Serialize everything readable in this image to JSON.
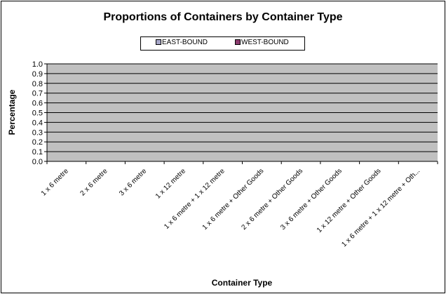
{
  "chart_data": {
    "type": "bar",
    "title": "Proportions of Containers by Container Type",
    "xlabel": "Container Type",
    "ylabel": "Percentage",
    "ylim": [
      0,
      1
    ],
    "yticks": [
      "0.0",
      "0.1",
      "0.2",
      "0.3",
      "0.4",
      "0.5",
      "0.6",
      "0.7",
      "0.8",
      "0.9",
      "1.0"
    ],
    "categories": [
      "1 x 6 metre",
      "2 x 6 metre",
      "3 x 6 metre",
      "1 x 12 metre",
      "1 x 6 metre + 1 x 12 metre",
      "1 x 6 metre + Other Goods",
      "2 x 6 metre + Other Goods",
      "3 x 6 metre + Other Goods",
      "1 x 12 metre + Other Goods",
      "1 x 6 metre + 1 x 12 metre + Oth..."
    ],
    "series": [
      {
        "name": "EAST-BOUND",
        "color": "#a6a6c8",
        "values": [
          0,
          0,
          0,
          0,
          0,
          0,
          0,
          0,
          0,
          0
        ]
      },
      {
        "name": "WEST-BOUND",
        "color": "#8c3c6e",
        "values": [
          0,
          0,
          0,
          0,
          0,
          0,
          0,
          0,
          0,
          0
        ]
      }
    ],
    "legend_position": "top",
    "grid": true,
    "plot_background": "#c0c0c0"
  }
}
